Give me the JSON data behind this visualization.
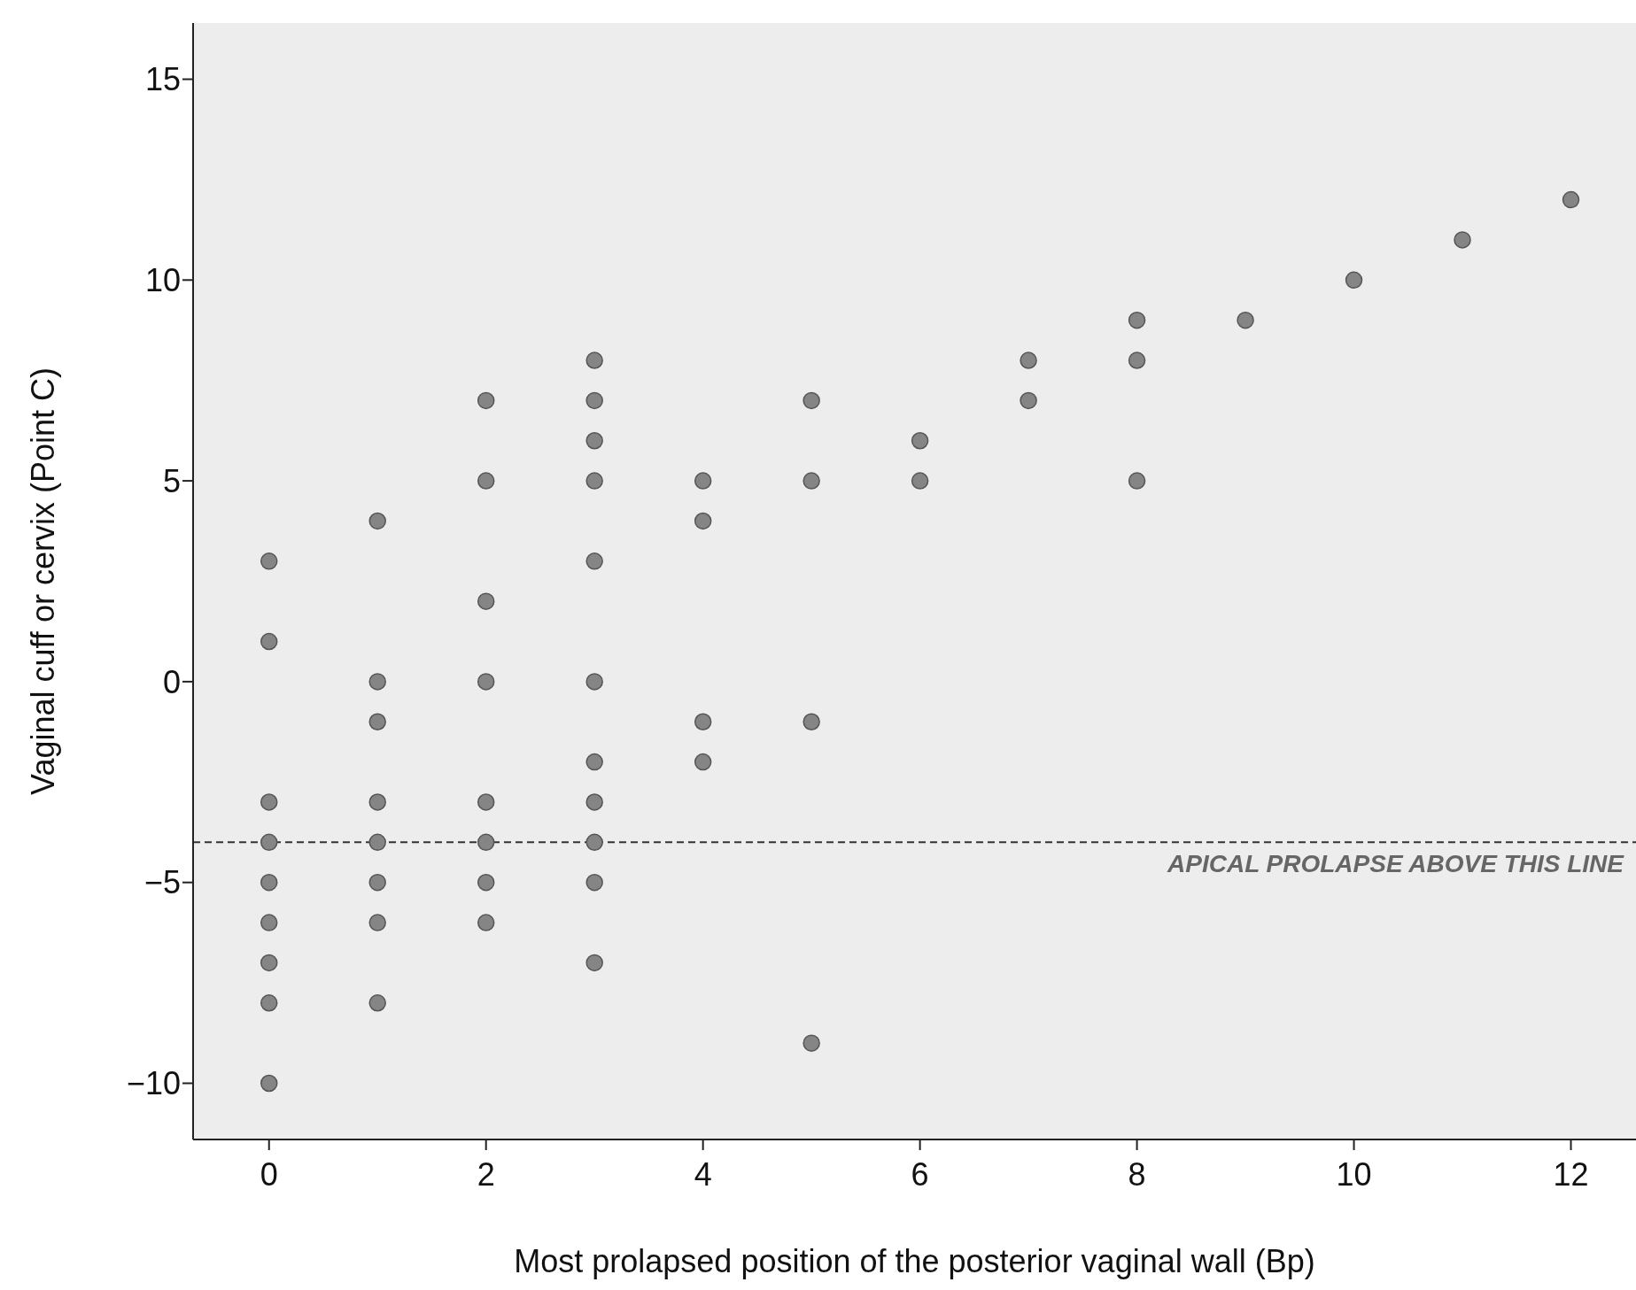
{
  "chart_data": {
    "type": "scatter",
    "xlabel": "Most prolapsed position of the posterior vaginal wall (Bp)",
    "ylabel": "Vaginal cuff or cervix (Point C)",
    "marker": "circle",
    "xlim": [
      -0.7,
      12.6
    ],
    "ylim": [
      -11.4,
      16.4
    ],
    "xticks": [
      0,
      2,
      4,
      6,
      8,
      10,
      12
    ],
    "yticks": [
      {
        "value": -10,
        "label": "−10"
      },
      {
        "value": -5,
        "label": "−5"
      },
      0,
      5,
      10,
      15
    ],
    "ref_lines": [
      {
        "axis": "y",
        "value": -4,
        "label": "APICAL PROLAPSE ABOVE THIS LINE",
        "color": "#333333",
        "line_style": "dashed"
      }
    ],
    "series": [
      {
        "color": "#858585",
        "x": [
          0,
          0,
          0,
          0,
          0,
          0,
          0,
          0,
          0,
          1,
          1,
          1,
          1,
          1,
          1,
          1,
          1,
          2,
          2,
          2,
          2,
          2,
          2,
          2,
          2,
          3,
          3,
          3,
          3,
          3,
          3,
          3,
          3,
          3,
          3,
          3,
          4,
          4,
          4,
          4,
          5,
          5,
          5,
          5,
          6,
          6,
          7,
          7,
          8,
          8,
          8,
          9,
          10,
          11,
          12
        ],
        "values": [
          3,
          1,
          -3,
          -4,
          -5,
          -6,
          -7,
          -8,
          -10,
          4,
          0,
          -1,
          -3,
          -4,
          -5,
          -6,
          -8,
          7,
          5,
          2,
          0,
          -3,
          -4,
          -5,
          -6,
          8,
          7,
          6,
          5,
          3,
          0,
          -2,
          -3,
          -4,
          -5,
          -7,
          5,
          4,
          -1,
          -2,
          7,
          5,
          -1,
          -9,
          6,
          5,
          8,
          7,
          9,
          8,
          5,
          9,
          10,
          11,
          12
        ]
      }
    ]
  }
}
